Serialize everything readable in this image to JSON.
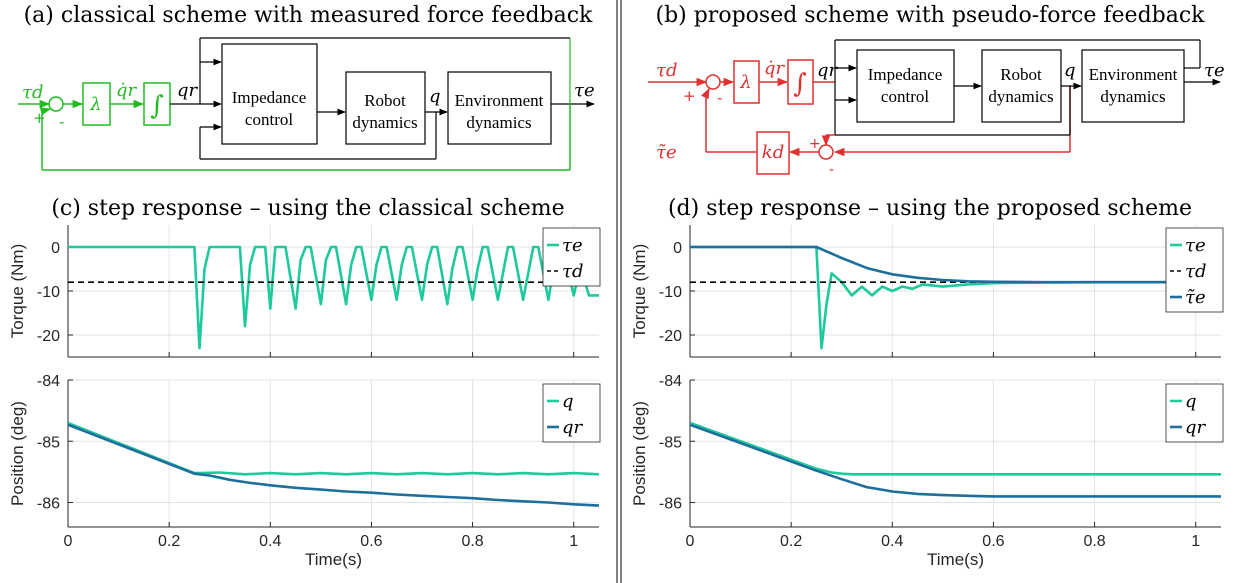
{
  "figure": {
    "panel_a_title": "(a) classical scheme with measured force feedback",
    "panel_b_title": "(b) proposed scheme with pseudo-force feedback",
    "panel_c_title": "(c) step response – using the classical scheme",
    "panel_d_title": "(d) step response – using the proposed scheme"
  },
  "diagram_a": {
    "color": "#22bb22",
    "input": "τd",
    "plus": "+",
    "minus": "-",
    "lambda": "λ",
    "qr_dot": "q̇r",
    "integrator": "∫",
    "qr": "qr",
    "impedance": [
      "Impedance",
      "control"
    ],
    "robot": [
      "Robot",
      "dynamics"
    ],
    "q": "q",
    "environment": [
      "Environment",
      "dynamics"
    ],
    "output": "τe"
  },
  "diagram_b": {
    "color": "#e03030",
    "input": "τd",
    "plus": "+",
    "minus": "-",
    "lambda": "λ",
    "qr_dot": "q̇r",
    "integrator": "∫",
    "qr": "qr",
    "impedance": [
      "Impedance",
      "control"
    ],
    "robot": [
      "Robot",
      "dynamics"
    ],
    "q": "q",
    "environment": [
      "Environment",
      "dynamics"
    ],
    "output": "τe",
    "gain": "kd",
    "feedback": "τ̃e",
    "sum2_plus": "+",
    "sum2_minus": "-"
  },
  "colors": {
    "teal": "#1ec99b",
    "blue": "#1f6f9c",
    "black": "#000000"
  },
  "chart_data": [
    {
      "id": "c-torque",
      "type": "line",
      "ylabel": "Torque (Nm)",
      "xlim": [
        0,
        1.05
      ],
      "ylim": [
        -25,
        5
      ],
      "yticks": [
        0,
        -10,
        -20
      ],
      "xticks": [
        0,
        0.2,
        0.4,
        0.6,
        0.8,
        1
      ],
      "grid": true,
      "legend": "top-right",
      "series": [
        {
          "name": "τe",
          "style": "solid",
          "color": "#1ec99b",
          "x": [
            0,
            0.25,
            0.26,
            0.27,
            0.28,
            0.34,
            0.35,
            0.36,
            0.37,
            0.39,
            0.4,
            0.41,
            0.42,
            0.43,
            0.45,
            0.46,
            0.47,
            0.48,
            0.5,
            0.51,
            0.52,
            0.53,
            0.55,
            0.56,
            0.57,
            0.58,
            0.6,
            0.61,
            0.62,
            0.63,
            0.65,
            0.66,
            0.67,
            0.68,
            0.7,
            0.71,
            0.72,
            0.73,
            0.75,
            0.76,
            0.77,
            0.78,
            0.8,
            0.81,
            0.82,
            0.83,
            0.85,
            0.86,
            0.87,
            0.88,
            0.9,
            0.91,
            0.92,
            0.93,
            0.95,
            0.96,
            0.97,
            0.98,
            1.0,
            1.01,
            1.02,
            1.03,
            1.05
          ],
          "y": [
            0,
            0,
            -23,
            -5,
            0,
            0,
            -18,
            -4,
            0,
            0,
            -14,
            0,
            0,
            0,
            -14,
            -3,
            0,
            0,
            -13,
            -3,
            0,
            0,
            -13,
            -4,
            0,
            0,
            -12,
            -4,
            0,
            0,
            -12,
            -4,
            0,
            0,
            -12,
            -4,
            0,
            0,
            -13,
            -5,
            0,
            0,
            -12,
            -5,
            0,
            0,
            -12,
            -6,
            0,
            0,
            -12,
            -6,
            0,
            0,
            -12,
            -5,
            -1,
            -1,
            -11,
            -6,
            -7,
            -11,
            -11
          ]
        },
        {
          "name": "τd",
          "style": "dashed",
          "color": "#000000",
          "x": [
            0,
            1.05
          ],
          "y": [
            -8,
            -8
          ]
        }
      ]
    },
    {
      "id": "c-position",
      "type": "line",
      "ylabel": "Position (deg)",
      "xlabel": "Time(s)",
      "xlim": [
        0,
        1.05
      ],
      "ylim": [
        -86.4,
        -84
      ],
      "yticks": [
        -84,
        -85,
        -86
      ],
      "xticks": [
        0,
        0.2,
        0.4,
        0.6,
        0.8,
        1
      ],
      "grid": true,
      "legend": "top-right",
      "series": [
        {
          "name": "q",
          "style": "solid",
          "color": "#1ec99b",
          "x": [
            0,
            0.25,
            0.26,
            0.3,
            0.35,
            0.4,
            0.45,
            0.5,
            0.55,
            0.6,
            0.65,
            0.7,
            0.75,
            0.8,
            0.85,
            0.9,
            0.95,
            1.0,
            1.05
          ],
          "y": [
            -84.7,
            -85.52,
            -85.52,
            -85.51,
            -85.54,
            -85.52,
            -85.54,
            -85.52,
            -85.54,
            -85.52,
            -85.54,
            -85.52,
            -85.54,
            -85.52,
            -85.54,
            -85.52,
            -85.54,
            -85.52,
            -85.54
          ]
        },
        {
          "name": "qr",
          "style": "solid",
          "color": "#1f6f9c",
          "x": [
            0,
            0.25,
            0.28,
            0.32,
            0.36,
            0.4,
            0.45,
            0.5,
            0.55,
            0.6,
            0.65,
            0.7,
            0.75,
            0.8,
            0.85,
            0.9,
            0.95,
            1.0,
            1.05
          ],
          "y": [
            -84.73,
            -85.53,
            -85.56,
            -85.63,
            -85.68,
            -85.72,
            -85.76,
            -85.79,
            -85.82,
            -85.84,
            -85.87,
            -85.89,
            -85.91,
            -85.93,
            -85.96,
            -85.98,
            -86.0,
            -86.03,
            -86.05
          ]
        }
      ]
    },
    {
      "id": "d-torque",
      "type": "line",
      "ylabel": "Torque (Nm)",
      "xlim": [
        0,
        1.05
      ],
      "ylim": [
        -25,
        5
      ],
      "yticks": [
        0,
        -10,
        -20
      ],
      "xticks": [
        0,
        0.2,
        0.4,
        0.6,
        0.8,
        1
      ],
      "grid": true,
      "legend": "top-right",
      "series": [
        {
          "name": "τe",
          "style": "solid",
          "color": "#1ec99b",
          "x": [
            0,
            0.25,
            0.26,
            0.27,
            0.28,
            0.3,
            0.32,
            0.34,
            0.36,
            0.38,
            0.4,
            0.42,
            0.44,
            0.46,
            0.5,
            0.55,
            0.6,
            0.7,
            0.8,
            1.05
          ],
          "y": [
            0,
            0,
            -23,
            -13,
            -6,
            -8,
            -11,
            -9,
            -11,
            -9,
            -10,
            -9,
            -9.5,
            -8.5,
            -9,
            -8.5,
            -8.2,
            -8.1,
            -8,
            -8
          ]
        },
        {
          "name": "τd",
          "style": "dashed",
          "color": "#000000",
          "x": [
            0,
            1.05
          ],
          "y": [
            -8,
            -8
          ]
        },
        {
          "name": "τ̃e",
          "style": "solid",
          "color": "#1f6f9c",
          "x": [
            0,
            0.25,
            0.3,
            0.35,
            0.4,
            0.45,
            0.5,
            0.55,
            0.6,
            0.7,
            0.8,
            1.05
          ],
          "y": [
            0,
            0,
            -2.5,
            -4.8,
            -6.2,
            -7.0,
            -7.5,
            -7.8,
            -7.9,
            -8,
            -8,
            -8
          ]
        }
      ]
    },
    {
      "id": "d-position",
      "type": "line",
      "ylabel": "Position (deg)",
      "xlabel": "Time(s)",
      "xlim": [
        0,
        1.05
      ],
      "ylim": [
        -86.4,
        -84
      ],
      "yticks": [
        -84,
        -85,
        -86
      ],
      "xticks": [
        0,
        0.2,
        0.4,
        0.6,
        0.8,
        1
      ],
      "grid": true,
      "legend": "top-right",
      "series": [
        {
          "name": "q",
          "style": "solid",
          "color": "#1ec99b",
          "x": [
            0,
            0.25,
            0.28,
            0.3,
            0.32,
            0.4,
            0.6,
            1.05
          ],
          "y": [
            -84.7,
            -85.45,
            -85.51,
            -85.53,
            -85.54,
            -85.54,
            -85.54,
            -85.54
          ]
        },
        {
          "name": "qr",
          "style": "solid",
          "color": "#1f6f9c",
          "x": [
            0,
            0.25,
            0.3,
            0.35,
            0.4,
            0.45,
            0.5,
            0.55,
            0.6,
            0.7,
            0.8,
            1.05
          ],
          "y": [
            -84.73,
            -85.48,
            -85.62,
            -85.75,
            -85.82,
            -85.86,
            -85.88,
            -85.89,
            -85.9,
            -85.9,
            -85.9,
            -85.9
          ]
        }
      ]
    }
  ]
}
